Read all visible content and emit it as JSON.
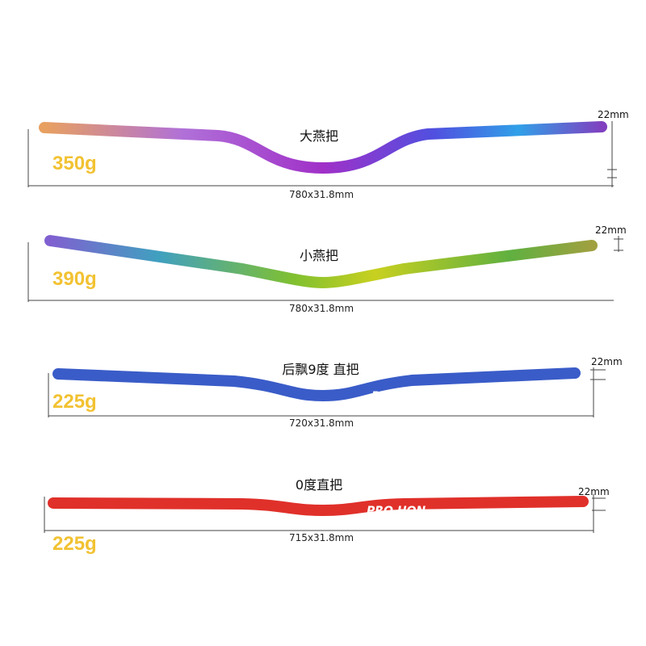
{
  "products": [
    {
      "name": "大燕把",
      "weight": "350g",
      "size": "780x31.8mm",
      "diameter": "22mm"
    },
    {
      "name": "小燕把",
      "weight": "390g",
      "size": "780x31.8mm",
      "diameter": "22mm"
    },
    {
      "name": "后飘9度 直把",
      "weight": "225g",
      "size": "720x31.8mm",
      "diameter": "22mm",
      "logo": "PRO HON"
    },
    {
      "name": "0度直把",
      "weight": "225g",
      "size": "715x31.8mm",
      "diameter": "22mm",
      "logo": "PRO HON"
    }
  ]
}
